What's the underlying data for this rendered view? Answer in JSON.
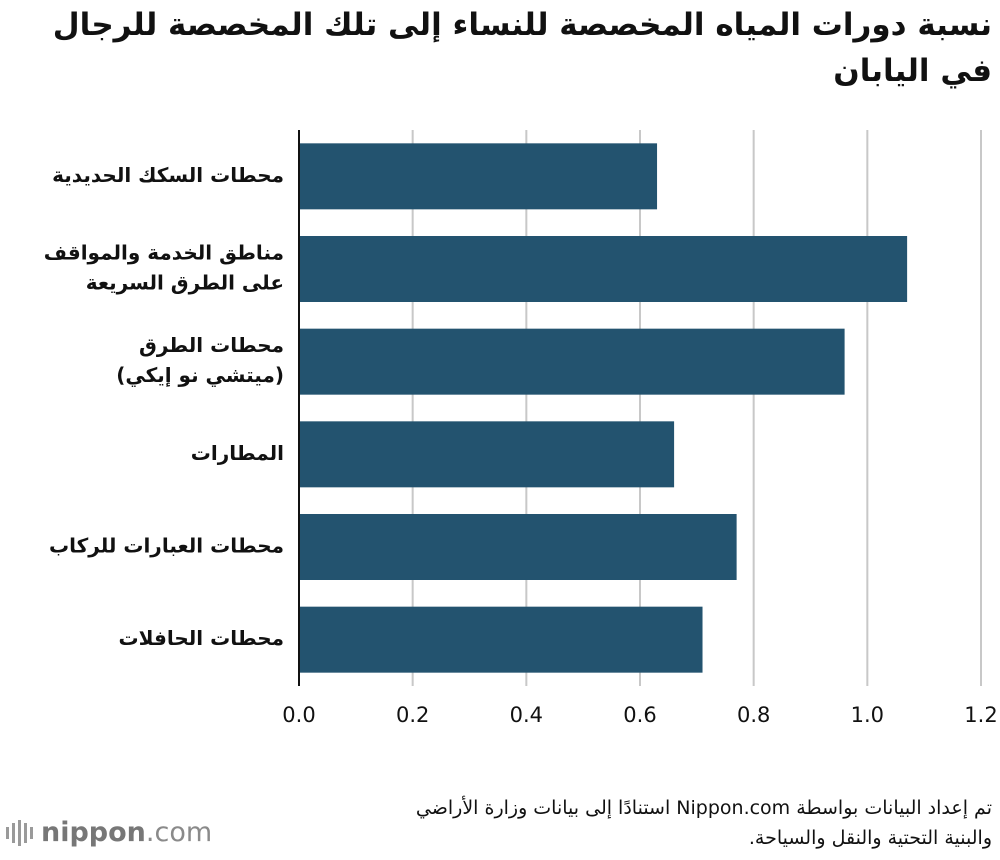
{
  "title_lines": [
    "نسبة دورات المياه المخصصة للنساء إلى تلك المخصصة للرجال",
    "في اليابان"
  ],
  "source_lines": [
    "تم إعداد البيانات بواسطة Nippon.com استنادًا إلى بيانات وزارة الأراضي",
    "والبنية التحتية والنقل والسياحة."
  ],
  "logo": {
    "brand": "nippon",
    "suffix": ".com"
  },
  "colors": {
    "bar": "#23536f",
    "grid": "#c8c8c8",
    "axis": "#111111"
  },
  "chart_data": {
    "type": "bar",
    "orientation": "horizontal",
    "categories": [
      [
        "محطات السكك الحديدية"
      ],
      [
        "مناطق الخدمة والمواقف",
        "على الطرق السريعة"
      ],
      [
        "محطات الطرق",
        "(ميتشي نو إيكي)"
      ],
      [
        "المطارات"
      ],
      [
        "محطات العبارات للركاب"
      ],
      [
        "محطات الحافلات"
      ]
    ],
    "values": [
      0.63,
      1.07,
      0.96,
      0.66,
      0.77,
      0.71
    ],
    "xlim": [
      0,
      1.2
    ],
    "xticks": [
      "0.0",
      "0.2",
      "0.4",
      "0.6",
      "0.8",
      "1.0",
      "1.2"
    ],
    "grid": true,
    "xlabel": "",
    "ylabel": ""
  }
}
